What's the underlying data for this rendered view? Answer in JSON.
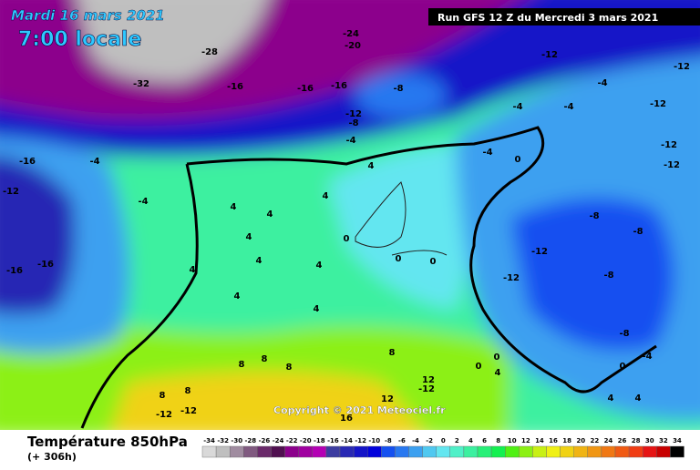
{
  "header": {
    "date": "Mardi 16 mars 2021",
    "time": "7:00 locale",
    "run": "Run GFS 12 Z du Mercredi 3 mars 2021"
  },
  "copyright": "Copyright © 2021 Meteociel.fr",
  "footer": {
    "title": "Température 850hPa",
    "lead": "(+ 306h)"
  },
  "legend": {
    "values": [
      -34,
      -32,
      -30,
      -28,
      -26,
      -24,
      -22,
      -20,
      -18,
      -16,
      -14,
      -12,
      -10,
      -8,
      -6,
      -4,
      -2,
      0,
      2,
      4,
      6,
      8,
      10,
      12,
      14,
      16,
      18,
      20,
      22,
      24,
      26,
      28,
      30,
      32,
      34
    ],
    "colors": [
      "#d9d9d9",
      "#bfbfbf",
      "#a08ca0",
      "#805a80",
      "#6a2a6a",
      "#501050",
      "#8c008c",
      "#a000a0",
      "#b400b4",
      "#3c3ca0",
      "#2828b4",
      "#1414c8",
      "#0000dc",
      "#1450f0",
      "#2878f0",
      "#3ca0f0",
      "#50c8f0",
      "#64e6f0",
      "#50f0c8",
      "#3cf0a0",
      "#28f078",
      "#14f050",
      "#50f014",
      "#8cf014",
      "#c8f014",
      "#f0f014",
      "#f0d214",
      "#f0b414",
      "#f09614",
      "#f07814",
      "#f05a14",
      "#f03c14",
      "#e61414",
      "#c80000",
      "#000000"
    ]
  },
  "map_labels": [
    "-28",
    "-24",
    "-20",
    "-16",
    "-32",
    "-16",
    "-16",
    "-8",
    "-12",
    "-8",
    "-4",
    "-12",
    "-12",
    "-4",
    "-12",
    "-12",
    "-12",
    "-4",
    "-4",
    "-8",
    "-8",
    "-12",
    "-12",
    "-8",
    "-8",
    "-4",
    "-16",
    "-12",
    "-16",
    "-16",
    "-4",
    "4",
    "4",
    "4",
    "4",
    "4",
    "4",
    "4",
    "4",
    "4",
    "4",
    "0",
    "0",
    "0",
    "0",
    "-4",
    "8",
    "8",
    "8",
    "8",
    "8",
    "8",
    "-12",
    "-12",
    "12",
    "-12",
    "12",
    "16",
    "0",
    "0",
    "4",
    "4",
    "0",
    "-4",
    "4"
  ]
}
